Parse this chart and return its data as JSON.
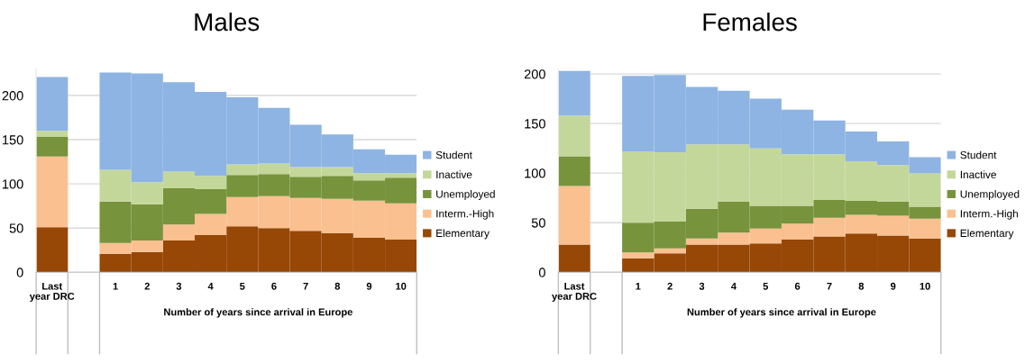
{
  "chart_data": [
    {
      "type": "bar",
      "title": "Males",
      "xlabel": "Number of years since arrival in Europe",
      "stacked": true,
      "categories": [
        "Last year DRC",
        null,
        "1",
        "2",
        "3",
        "4",
        "5",
        "6",
        "7",
        "8",
        "9",
        "10"
      ],
      "series": [
        {
          "name": "Elementary",
          "color": "#974706",
          "values": [
            51,
            null,
            21,
            23,
            36,
            42,
            52,
            50,
            47,
            44,
            39,
            37
          ]
        },
        {
          "name": "Interm.-High",
          "color": "#fac090",
          "values": [
            80,
            null,
            12,
            13,
            18,
            24,
            33,
            36,
            37,
            39,
            42,
            41
          ]
        },
        {
          "name": "Unemployed",
          "color": "#77933c",
          "values": [
            22,
            null,
            47,
            41,
            41,
            28,
            25,
            25,
            24,
            26,
            23,
            29
          ]
        },
        {
          "name": "Inactive",
          "color": "#c4d79b",
          "values": [
            7,
            null,
            36,
            25,
            19,
            15,
            12,
            12,
            11,
            10,
            8,
            5
          ]
        },
        {
          "name": "Student",
          "color": "#8eb4e3",
          "values": [
            61,
            null,
            110,
            123,
            101,
            95,
            76,
            63,
            48,
            37,
            27,
            21
          ]
        }
      ],
      "ylim": [
        0,
        230
      ],
      "yticks": [
        0,
        50,
        100,
        150,
        200
      ],
      "grid": "y",
      "legend": "right"
    },
    {
      "type": "bar",
      "title": "Females",
      "xlabel": "Number of years since arrival in Europe",
      "stacked": true,
      "categories": [
        "Last year DRC",
        null,
        "1",
        "2",
        "3",
        "4",
        "5",
        "6",
        "7",
        "8",
        "9",
        "10"
      ],
      "series": [
        {
          "name": "Elementary",
          "color": "#974706",
          "values": [
            28,
            null,
            14,
            19,
            28,
            28,
            29,
            33,
            36,
            39,
            37,
            34
          ]
        },
        {
          "name": "Interm.-High",
          "color": "#fac090",
          "values": [
            59,
            null,
            6,
            5,
            6,
            12,
            15,
            16,
            19,
            19,
            20,
            20
          ]
        },
        {
          "name": "Unemployed",
          "color": "#77933c",
          "values": [
            30,
            null,
            30,
            27,
            30,
            31,
            23,
            18,
            18,
            14,
            14,
            12
          ]
        },
        {
          "name": "Inactive",
          "color": "#c4d79b",
          "values": [
            41,
            null,
            72,
            70,
            65,
            58,
            58,
            52,
            46,
            40,
            37,
            34
          ]
        },
        {
          "name": "Student",
          "color": "#8eb4e3",
          "values": [
            45,
            null,
            76,
            78,
            58,
            54,
            50,
            45,
            34,
            30,
            24,
            16
          ]
        }
      ],
      "ylim": [
        0,
        205
      ],
      "yticks": [
        0,
        50,
        100,
        150,
        200
      ],
      "grid": "y",
      "legend": "right"
    }
  ]
}
